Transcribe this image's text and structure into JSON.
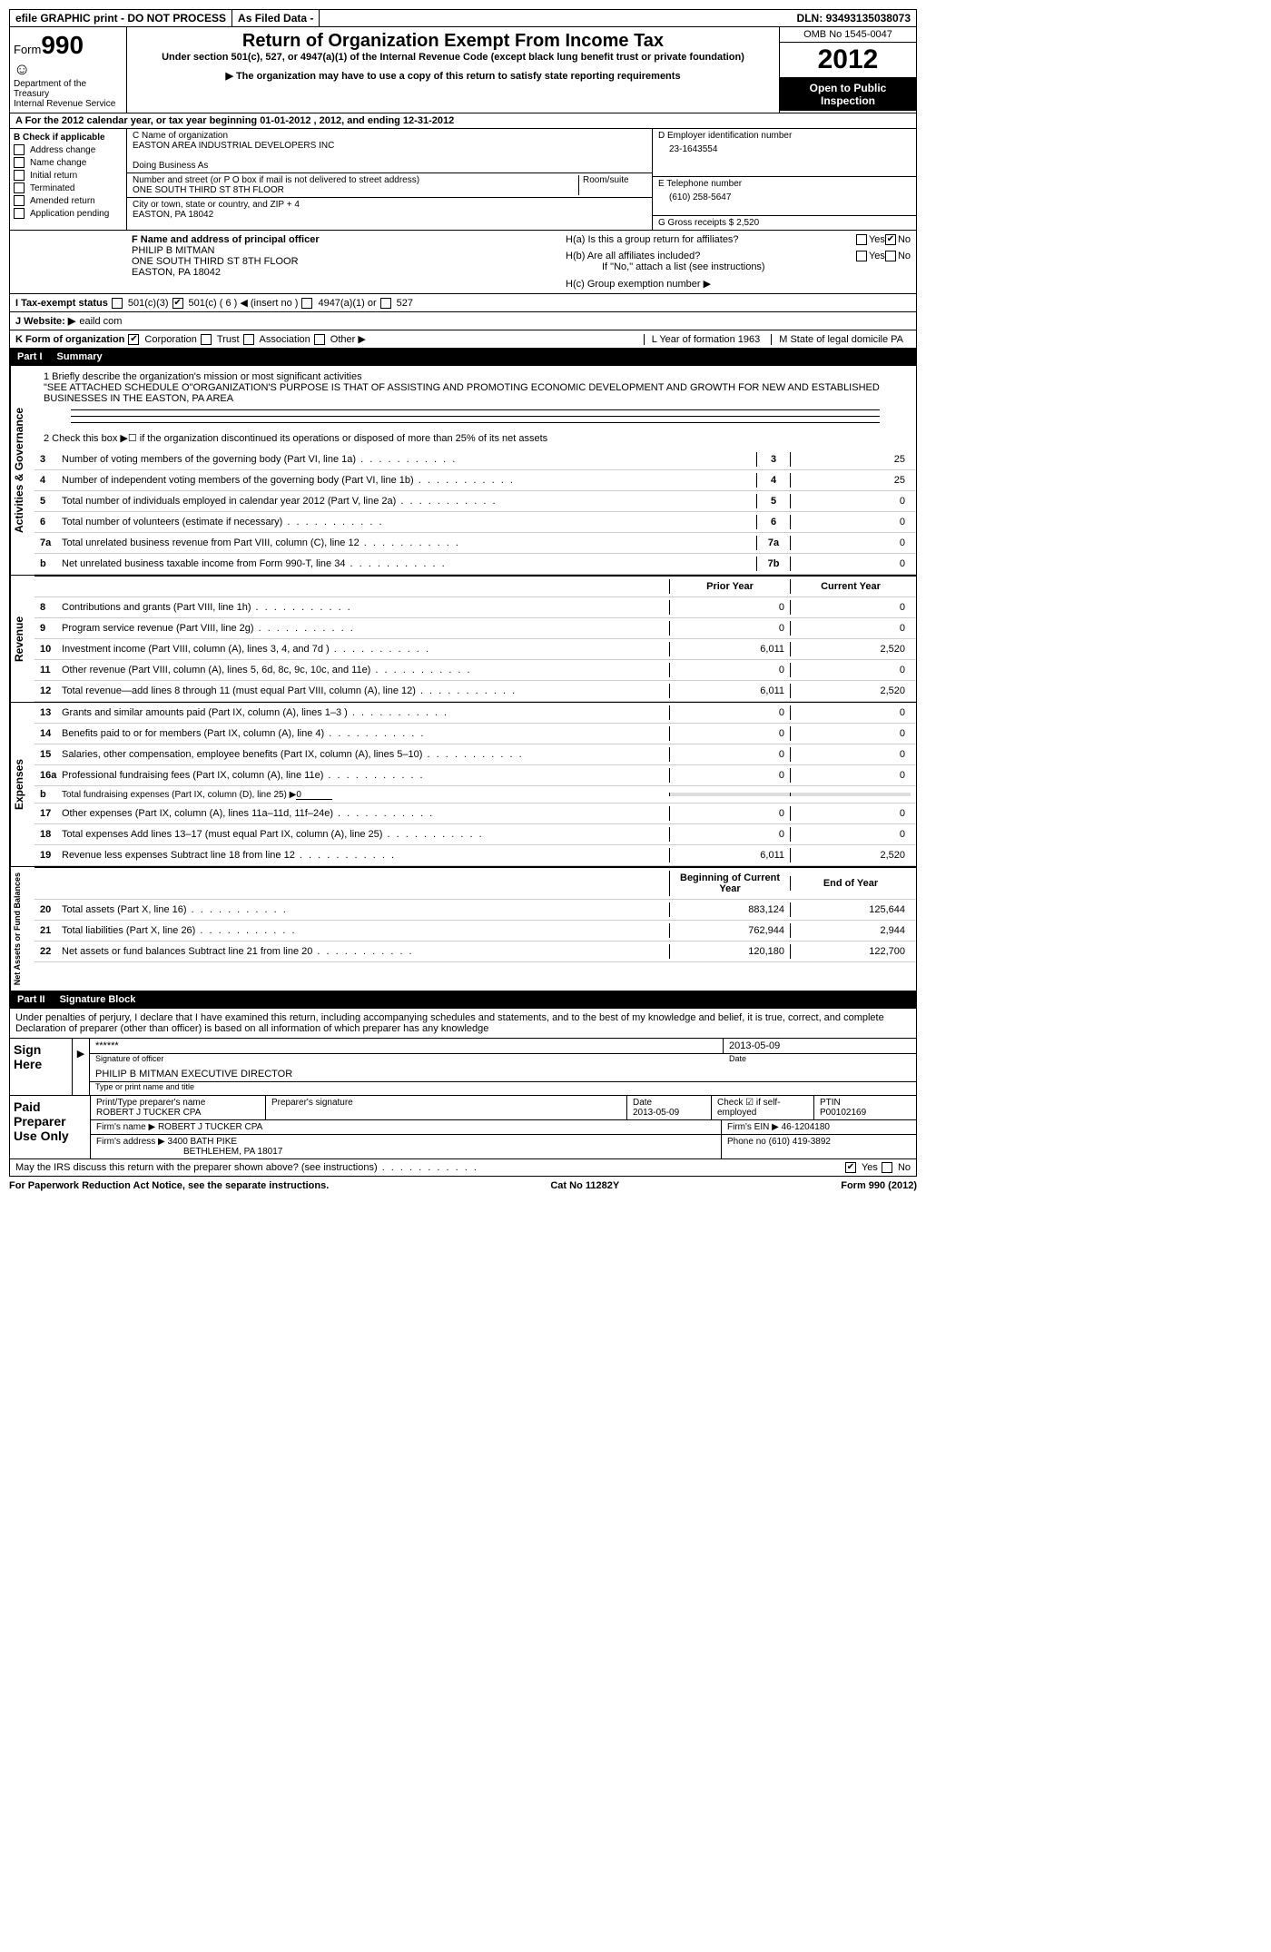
{
  "top": {
    "efile": "efile GRAPHIC print - DO NOT PROCESS",
    "asfiled": "As Filed Data -",
    "dln_label": "DLN:",
    "dln": "93493135038073"
  },
  "header": {
    "form_prefix": "Form",
    "form_num": "990",
    "dept": "Department of the Treasury",
    "irs": "Internal Revenue Service",
    "title": "Return of Organization Exempt From Income Tax",
    "sub1": "Under section 501(c), 527, or 4947(a)(1) of the Internal Revenue Code (except black lung benefit trust or private foundation)",
    "sub2": "▶ The organization may have to use a copy of this return to satisfy state reporting requirements",
    "omb": "OMB No 1545-0047",
    "year": "2012",
    "open": "Open to Public Inspection"
  },
  "row_a": "A  For the 2012 calendar year, or tax year beginning 01-01-2012     , 2012, and ending 12-31-2012",
  "section_b": {
    "label": "B  Check if applicable",
    "items": [
      "Address change",
      "Name change",
      "Initial return",
      "Terminated",
      "Amended return",
      "Application pending"
    ]
  },
  "section_c": {
    "name_label": "C Name of organization",
    "name": "EASTON AREA INDUSTRIAL DEVELOPERS INC",
    "dba_label": "Doing Business As",
    "dba": "",
    "street_label": "Number and street (or P O  box if mail is not delivered to street address)",
    "room_label": "Room/suite",
    "street": "ONE SOUTH THIRD ST 8TH FLOOR",
    "city_label": "City or town, state or country, and ZIP + 4",
    "city": "EASTON, PA  18042"
  },
  "section_d": {
    "label": "D Employer identification number",
    "value": "23-1643554"
  },
  "section_e": {
    "label": "E Telephone number",
    "value": "(610) 258-5647"
  },
  "section_g": {
    "label": "G Gross receipts $",
    "value": "2,520"
  },
  "section_f": {
    "label": "F  Name and address of principal officer",
    "l1": "PHILIP B MITMAN",
    "l2": "ONE SOUTH THIRD ST 8TH FLOOR",
    "l3": "EASTON, PA  18042"
  },
  "section_h": {
    "a": "H(a)  Is this a group return for affiliates?",
    "yes": "Yes",
    "no": "No",
    "b": "H(b)  Are all affiliates included?",
    "bnote": "If \"No,\" attach a list  (see instructions)",
    "c": "H(c)  Group exemption number ▶"
  },
  "row_i": {
    "label": "I   Tax-exempt status",
    "o1": "501(c)(3)",
    "o2": "501(c) ( 6 ) ◀ (insert no )",
    "o3": "4947(a)(1) or",
    "o4": "527"
  },
  "row_j": {
    "label": "J  Website: ▶",
    "val": "eaild com"
  },
  "row_k": {
    "label": "K Form of organization",
    "opts": [
      "Corporation",
      "Trust",
      "Association",
      "Other ▶"
    ],
    "l_label": "L Year of formation  1963",
    "m_label": "M State of legal domicile  PA"
  },
  "part1": {
    "title": "Part I",
    "name": "Summary"
  },
  "summary": {
    "q1_label": "1    Briefly describe the organization's mission or most significant activities",
    "q1_text": "\"SEE ATTACHED SCHEDULE O\"ORGANIZATION'S PURPOSE IS THAT OF ASSISTING AND PROMOTING ECONOMIC DEVELOPMENT AND GROWTH FOR NEW AND ESTABLISHED BUSINESSES IN THE EASTON, PA AREA",
    "q2": "2    Check this box ▶☐ if the organization discontinued its operations or disposed of more than 25% of its net assets",
    "rows_top": [
      {
        "n": "3",
        "d": "Number of voting members of the governing body (Part VI, line 1a)",
        "b": "3",
        "v": "25"
      },
      {
        "n": "4",
        "d": "Number of independent voting members of the governing body (Part VI, line 1b)",
        "b": "4",
        "v": "25"
      },
      {
        "n": "5",
        "d": "Total number of individuals employed in calendar year 2012 (Part V, line 2a)",
        "b": "5",
        "v": "0"
      },
      {
        "n": "6",
        "d": "Total number of volunteers (estimate if necessary)",
        "b": "6",
        "v": "0"
      },
      {
        "n": "7a",
        "d": "Total unrelated business revenue from Part VIII, column (C), line 12",
        "b": "7a",
        "v": "0"
      },
      {
        "n": "b",
        "d": "Net unrelated business taxable income from Form 990-T, line 34",
        "b": "7b",
        "v": "0"
      }
    ],
    "prior": "Prior Year",
    "current": "Current Year",
    "revenue": [
      {
        "n": "8",
        "d": "Contributions and grants (Part VIII, line 1h)",
        "p": "0",
        "c": "0"
      },
      {
        "n": "9",
        "d": "Program service revenue (Part VIII, line 2g)",
        "p": "0",
        "c": "0"
      },
      {
        "n": "10",
        "d": "Investment income (Part VIII, column (A), lines 3, 4, and 7d )",
        "p": "6,011",
        "c": "2,520"
      },
      {
        "n": "11",
        "d": "Other revenue (Part VIII, column (A), lines 5, 6d, 8c, 9c, 10c, and 11e)",
        "p": "0",
        "c": "0"
      },
      {
        "n": "12",
        "d": "Total revenue—add lines 8 through 11 (must equal Part VIII, column (A), line 12)",
        "p": "6,011",
        "c": "2,520"
      }
    ],
    "expenses": [
      {
        "n": "13",
        "d": "Grants and similar amounts paid (Part IX, column (A), lines 1–3 )",
        "p": "0",
        "c": "0"
      },
      {
        "n": "14",
        "d": "Benefits paid to or for members (Part IX, column (A), line 4)",
        "p": "0",
        "c": "0"
      },
      {
        "n": "15",
        "d": "Salaries, other compensation, employee benefits (Part IX, column (A), lines 5–10)",
        "p": "0",
        "c": "0"
      },
      {
        "n": "16a",
        "d": "Professional fundraising fees (Part IX, column (A), line 11e)",
        "p": "0",
        "c": "0"
      },
      {
        "n": "b",
        "d": "Total fundraising expenses (Part IX, column (D), line 25) ▶",
        "p": "",
        "c": "",
        "sub": true,
        "u": "0"
      },
      {
        "n": "17",
        "d": "Other expenses (Part IX, column (A), lines 11a–11d, 11f–24e)",
        "p": "0",
        "c": "0"
      },
      {
        "n": "18",
        "d": "Total expenses  Add lines 13–17 (must equal Part IX, column (A), line 25)",
        "p": "0",
        "c": "0"
      },
      {
        "n": "19",
        "d": "Revenue less expenses  Subtract line 18 from line 12",
        "p": "6,011",
        "c": "2,520"
      }
    ],
    "beg": "Beginning of Current Year",
    "end": "End of Year",
    "net": [
      {
        "n": "20",
        "d": "Total assets (Part X, line 16)",
        "p": "883,124",
        "c": "125,644"
      },
      {
        "n": "21",
        "d": "Total liabilities (Part X, line 26)",
        "p": "762,944",
        "c": "2,944"
      },
      {
        "n": "22",
        "d": "Net assets or fund balances  Subtract line 21 from line 20",
        "p": "120,180",
        "c": "122,700"
      }
    ],
    "vlabels": {
      "ag": "Activities & Governance",
      "rev": "Revenue",
      "exp": "Expenses",
      "net": "Net Assets or\nFund Balances"
    }
  },
  "part2": {
    "title": "Part II",
    "name": "Signature Block",
    "decl": "Under penalties of perjury, I declare that I have examined this return, including accompanying schedules and statements, and to the best of my knowledge and belief, it is true, correct, and complete  Declaration of preparer (other than officer) is based on all information of which preparer has any knowledge"
  },
  "sign": {
    "here": "Sign Here",
    "stars": "******",
    "sig_date": "2013-05-09",
    "sig_of": "Signature of officer",
    "date_lbl": "Date",
    "name": "PHILIP B MITMAN EXECUTIVE DIRECTOR",
    "name_lbl": "Type or print name and title"
  },
  "paid": {
    "label": "Paid Preparer Use Only",
    "h1": "Print/Type preparer's name",
    "h2": "Preparer's signature",
    "h3": "Date",
    "h4": "Check ☑ if self-employed",
    "h5": "PTIN",
    "name": "ROBERT J TUCKER CPA",
    "date": "2013-05-09",
    "ptin": "P00102169",
    "firm_lbl": "Firm's name    ▶",
    "firm": "ROBERT J TUCKER CPA",
    "ein_lbl": "Firm's EIN ▶",
    "ein": "46-1204180",
    "addr_lbl": "Firm's address ▶",
    "addr1": "3400 BATH PIKE",
    "addr2": "BETHLEHEM, PA  18017",
    "phone_lbl": "Phone no",
    "phone": "(610) 419-3892",
    "discuss": "May the IRS discuss this return with the preparer shown above? (see instructions)",
    "yes": "Yes",
    "no": "No"
  },
  "footer": {
    "pra": "For Paperwork Reduction Act Notice, see the separate instructions.",
    "cat": "Cat No  11282Y",
    "form": "Form 990 (2012)"
  }
}
